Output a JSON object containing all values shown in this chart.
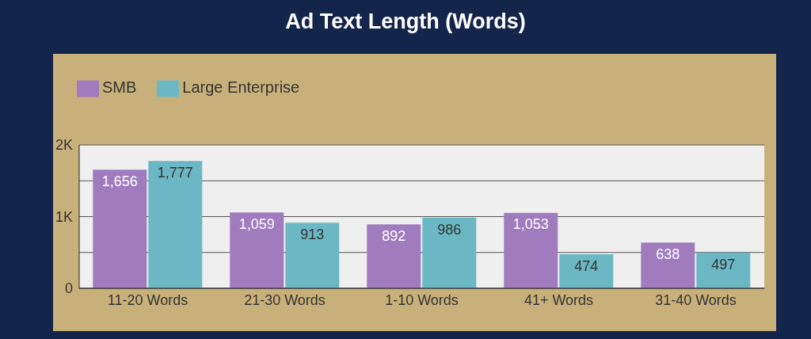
{
  "chart_data": {
    "type": "bar",
    "title": "Ad Text Length (Words)",
    "categories": [
      "11-20 Words",
      "21-30 Words",
      "1-10 Words",
      "41+ Words",
      "31-40 Words"
    ],
    "series": [
      {
        "name": "SMB",
        "color": "#a07cbf",
        "values": [
          1656,
          1059,
          892,
          1053,
          638
        ],
        "value_labels": [
          "1,656",
          "1,059",
          "892",
          "1,053",
          "638"
        ]
      },
      {
        "name": "Large Enterprise",
        "color": "#6bb8c4",
        "values": [
          1777,
          913,
          986,
          474,
          497
        ],
        "value_labels": [
          "1,777",
          "913",
          "986",
          "474",
          "497"
        ]
      }
    ],
    "ylim": [
      0,
      2000
    ],
    "yticks": [
      0,
      {
        "value": 500,
        "label": null
      },
      {
        "value": 1000,
        "label": "1K"
      },
      {
        "value": 1500,
        "label": null
      },
      {
        "value": 2000,
        "label": "2K"
      }
    ],
    "grid": "y",
    "legend": "top left"
  }
}
